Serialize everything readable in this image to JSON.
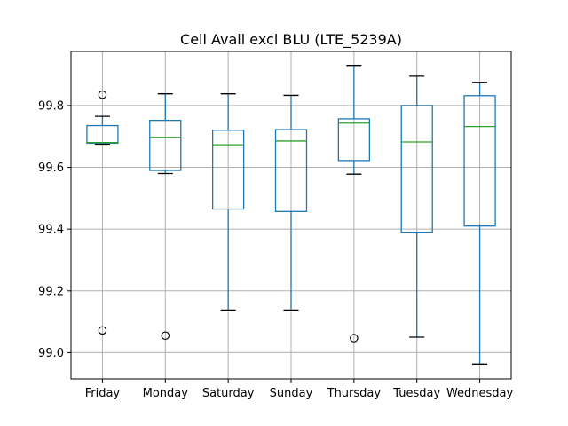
{
  "chart_data": {
    "type": "box",
    "title": "Cell Avail excl BLU (LTE_5239A)",
    "xlabel": "",
    "ylabel": "",
    "ylim": [
      98.915,
      99.975
    ],
    "yticks": [
      99.0,
      99.2,
      99.4,
      99.6,
      99.8
    ],
    "ytick_labels": [
      "99.0",
      "99.2",
      "99.4",
      "99.6",
      "99.8"
    ],
    "grid": true,
    "categories": [
      "Friday",
      "Monday",
      "Saturday",
      "Sunday",
      "Thursday",
      "Tuesday",
      "Wednesday"
    ],
    "boxes": [
      {
        "category": "Friday",
        "whisker_low": 99.675,
        "q1": 99.678,
        "median": 99.68,
        "q3": 99.735,
        "whisker_high": 99.765,
        "outliers": [
          99.835,
          99.072
        ]
      },
      {
        "category": "Monday",
        "whisker_low": 99.58,
        "q1": 99.59,
        "median": 99.697,
        "q3": 99.752,
        "whisker_high": 99.838,
        "outliers": [
          99.055
        ]
      },
      {
        "category": "Saturday",
        "whisker_low": 99.138,
        "q1": 99.465,
        "median": 99.673,
        "q3": 99.72,
        "whisker_high": 99.838,
        "outliers": []
      },
      {
        "category": "Sunday",
        "whisker_low": 99.138,
        "q1": 99.457,
        "median": 99.685,
        "q3": 99.722,
        "whisker_high": 99.833,
        "outliers": []
      },
      {
        "category": "Thursday",
        "whisker_low": 99.578,
        "q1": 99.622,
        "median": 99.743,
        "q3": 99.757,
        "whisker_high": 99.93,
        "outliers": [
          99.047
        ]
      },
      {
        "category": "Tuesday",
        "whisker_low": 99.05,
        "q1": 99.39,
        "median": 99.682,
        "q3": 99.8,
        "whisker_high": 99.895,
        "outliers": []
      },
      {
        "category": "Wednesday",
        "whisker_low": 98.963,
        "q1": 99.41,
        "median": 99.732,
        "q3": 99.832,
        "whisker_high": 99.875,
        "outliers": []
      }
    ],
    "colors": {
      "box": "#1f77b4",
      "median": "#2ca02c",
      "grid": "#b0b0b0",
      "axis": "#000000"
    }
  }
}
